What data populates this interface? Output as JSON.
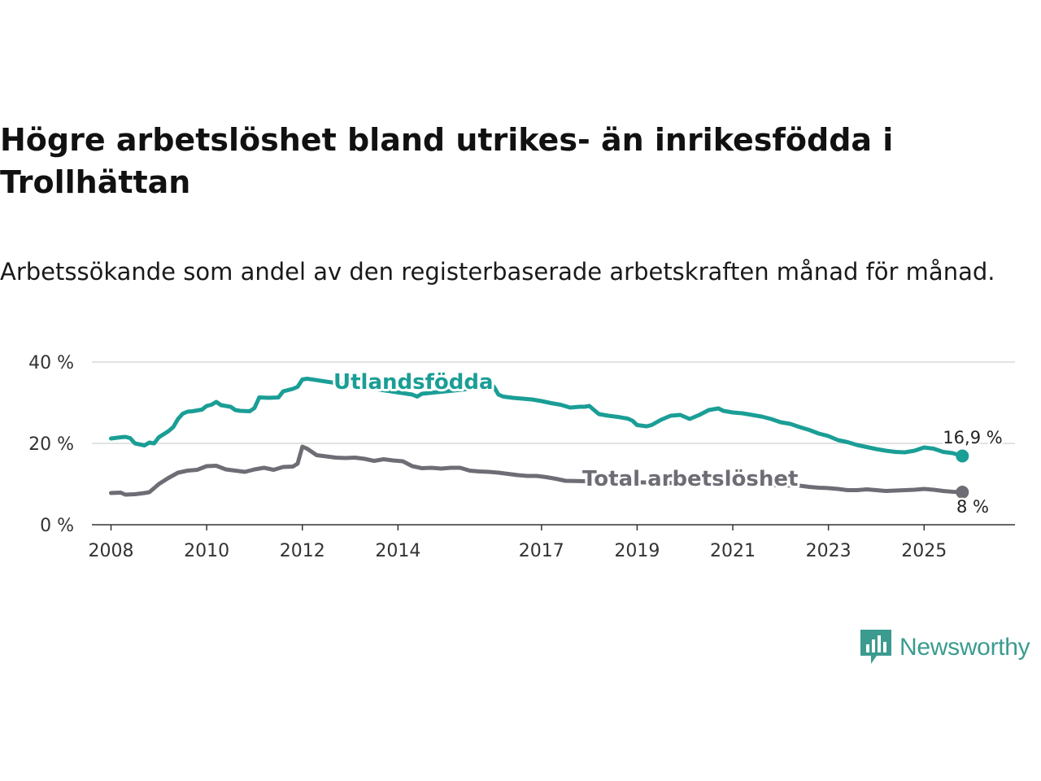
{
  "title": "Högre arbetslöshet bland utrikes- än inrikesfödda i Trollhättan",
  "subtitle": "Arbetssökande som andel av den registerbaserade arbetskraften månad för månad.",
  "brand": {
    "name": "Newsworthy",
    "color": "#3b9b8f"
  },
  "chart_data": {
    "type": "line",
    "title": "Högre arbetslöshet bland utrikes- än inrikesfödda i Trollhättan",
    "xlabel": "",
    "ylabel": "",
    "xlim": [
      2007.6,
      2026.9
    ],
    "ylim": [
      0,
      40
    ],
    "grid": true,
    "x_ticks": [
      2008,
      2010,
      2012,
      2014,
      2017,
      2019,
      2021,
      2023,
      2025
    ],
    "x_tick_labels": [
      "2008",
      "2010",
      "2012",
      "2014",
      "2017",
      "2019",
      "2021",
      "2023",
      "2025"
    ],
    "y_ticks": [
      0,
      20,
      40
    ],
    "y_tick_labels": [
      "0 %",
      "20 %",
      "40 %"
    ],
    "series": [
      {
        "name": "Utlandsfödda",
        "label": "Utlandsfödda",
        "color": "#1a9e96",
        "end_label": "16,9 %",
        "x": [
          2008.0,
          2008.2,
          2008.3,
          2008.4,
          2008.5,
          2008.7,
          2008.8,
          2008.9,
          2009.0,
          2009.2,
          2009.3,
          2009.4,
          2009.5,
          2009.6,
          2009.7,
          2009.9,
          2010.0,
          2010.1,
          2010.2,
          2010.3,
          2010.5,
          2010.6,
          2010.7,
          2010.9,
          2011.0,
          2011.1,
          2011.3,
          2011.5,
          2011.6,
          2011.8,
          2011.9,
          2012.0,
          2012.1,
          2014.3,
          2014.4,
          2014.5,
          2016.0,
          2016.1,
          2016.2,
          2016.4,
          2016.6,
          2016.8,
          2017.0,
          2017.2,
          2017.4,
          2017.6,
          2017.8,
          2017.9,
          2018.0,
          2018.2,
          2018.4,
          2018.6,
          2018.8,
          2018.9,
          2019.0,
          2019.2,
          2019.3,
          2019.5,
          2019.7,
          2019.9,
          2020.1,
          2020.3,
          2020.5,
          2020.7,
          2020.8,
          2021.0,
          2021.2,
          2021.4,
          2021.6,
          2021.8,
          2022.0,
          2022.2,
          2022.4,
          2022.6,
          2022.8,
          2023.0,
          2023.2,
          2023.4,
          2023.6,
          2023.8,
          2024.0,
          2024.2,
          2024.4,
          2024.6,
          2024.8,
          2025.0,
          2025.2,
          2025.4,
          2025.6,
          2025.8
        ],
        "values": [
          21.2,
          21.5,
          21.6,
          21.3,
          20.0,
          19.5,
          20.2,
          20.0,
          21.5,
          23.0,
          24.0,
          26.0,
          27.3,
          27.8,
          27.9,
          28.3,
          29.2,
          29.5,
          30.2,
          29.4,
          29.0,
          28.2,
          28.0,
          27.9,
          28.7,
          31.3,
          31.2,
          31.3,
          32.8,
          33.4,
          33.9,
          35.7,
          35.9,
          32.0,
          31.5,
          32.2,
          34.0,
          32.0,
          31.5,
          31.2,
          31.0,
          30.8,
          30.4,
          29.9,
          29.5,
          28.8,
          29.0,
          29.0,
          29.2,
          27.2,
          26.8,
          26.5,
          26.1,
          25.6,
          24.5,
          24.2,
          24.5,
          25.8,
          26.8,
          27.0,
          26.0,
          27.0,
          28.2,
          28.6,
          28.0,
          27.6,
          27.4,
          27.0,
          26.6,
          26.0,
          25.2,
          24.8,
          24.0,
          23.3,
          22.4,
          21.8,
          20.8,
          20.3,
          19.6,
          19.1,
          18.6,
          18.2,
          17.9,
          17.8,
          18.2,
          19.0,
          18.7,
          17.9,
          17.6,
          16.9
        ]
      },
      {
        "name": "Total arbetslöshet",
        "label": "Total arbetslöshet",
        "color": "#6e6d75",
        "end_label": "8 %",
        "x": [
          2008.0,
          2008.2,
          2008.3,
          2008.5,
          2008.7,
          2008.8,
          2008.9,
          2009.0,
          2009.2,
          2009.4,
          2009.6,
          2009.8,
          2010.0,
          2010.2,
          2010.4,
          2010.6,
          2010.8,
          2011.0,
          2011.2,
          2011.4,
          2011.6,
          2011.8,
          2011.9,
          2012.0,
          2012.1,
          2012.3,
          2012.5,
          2012.7,
          2012.9,
          2013.1,
          2013.3,
          2013.5,
          2013.7,
          2013.9,
          2014.1,
          2014.3,
          2014.5,
          2014.7,
          2014.9,
          2015.1,
          2015.3,
          2015.5,
          2015.7,
          2015.9,
          2016.1,
          2016.3,
          2016.5,
          2016.7,
          2016.9,
          2017.1,
          2017.3,
          2017.5,
          2022.4,
          2022.6,
          2022.8,
          2023.0,
          2023.2,
          2023.4,
          2023.6,
          2023.8,
          2024.0,
          2024.2,
          2024.4,
          2024.6,
          2024.8,
          2025.0,
          2025.2,
          2025.4,
          2025.6,
          2025.8
        ],
        "values": [
          7.8,
          7.9,
          7.4,
          7.5,
          7.8,
          8.0,
          9.0,
          10.0,
          11.5,
          12.8,
          13.3,
          13.5,
          14.4,
          14.5,
          13.6,
          13.3,
          13.0,
          13.6,
          14.0,
          13.5,
          14.2,
          14.3,
          15.0,
          19.2,
          18.7,
          17.1,
          16.8,
          16.5,
          16.4,
          16.5,
          16.2,
          15.7,
          16.1,
          15.8,
          15.6,
          14.4,
          13.9,
          14.0,
          13.8,
          14.0,
          14.0,
          13.3,
          13.1,
          13.0,
          12.8,
          12.5,
          12.2,
          12.0,
          12.0,
          11.7,
          11.3,
          10.8,
          9.6,
          9.3,
          9.1,
          9.0,
          8.8,
          8.5,
          8.5,
          8.7,
          8.5,
          8.3,
          8.4,
          8.5,
          8.6,
          8.8,
          8.6,
          8.3,
          8.1,
          8.0
        ]
      }
    ]
  }
}
